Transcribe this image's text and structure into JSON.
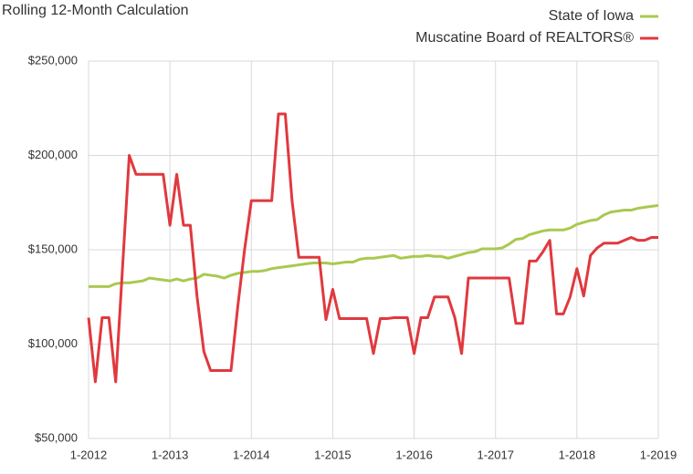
{
  "chart_data": {
    "type": "line",
    "title": "Rolling 12-Month Calculation",
    "categories": [
      "1-2012",
      null,
      null,
      null,
      null,
      null,
      null,
      null,
      null,
      null,
      null,
      null,
      "1-2013",
      null,
      null,
      null,
      null,
      null,
      null,
      null,
      null,
      null,
      null,
      null,
      "1-2014",
      null,
      null,
      null,
      null,
      null,
      null,
      null,
      null,
      null,
      null,
      null,
      "1-2015",
      null,
      null,
      null,
      null,
      null,
      null,
      null,
      null,
      null,
      null,
      null,
      "1-2016",
      null,
      null,
      null,
      null,
      null,
      null,
      null,
      null,
      null,
      null,
      null,
      "1-2017",
      null,
      null,
      null,
      null,
      null,
      null,
      null,
      null,
      null,
      null,
      null,
      "1-2018",
      null,
      null,
      null,
      null,
      null,
      null,
      null,
      null,
      null,
      null,
      null,
      "1-2019"
    ],
    "series": [
      {
        "name": "State of Iowa",
        "color": "#a9c94f",
        "values": [
          130500,
          130500,
          130500,
          130500,
          132000,
          132500,
          132500,
          133000,
          133500,
          135000,
          134500,
          134000,
          133500,
          134500,
          133500,
          134500,
          135000,
          137000,
          136500,
          136000,
          135000,
          136500,
          137500,
          138000,
          138500,
          138500,
          139000,
          140000,
          140500,
          141000,
          141500,
          142000,
          142500,
          143000,
          143000,
          143000,
          142500,
          143000,
          143500,
          143500,
          145000,
          145500,
          145500,
          146000,
          146500,
          147000,
          145500,
          146000,
          146500,
          146500,
          147000,
          146500,
          146500,
          145500,
          146500,
          147500,
          148500,
          149000,
          150500,
          150500,
          150500,
          151000,
          153000,
          155500,
          156000,
          158000,
          159000,
          160000,
          160500,
          160500,
          160500,
          161500,
          163500,
          164500,
          165500,
          166000,
          168500,
          170000,
          170500,
          171000,
          171000,
          172000,
          172500,
          173000,
          173500
        ]
      },
      {
        "name": "Muscatine Board of REALTORS®",
        "color": "#e0393e",
        "values": [
          114000,
          80000,
          114000,
          114000,
          80000,
          140000,
          200000,
          190000,
          190000,
          190000,
          190000,
          190000,
          163000,
          190000,
          163000,
          163000,
          125000,
          96000,
          86000,
          86000,
          86000,
          86000,
          120000,
          150000,
          176000,
          176000,
          176000,
          176000,
          222000,
          222000,
          176000,
          146000,
          146000,
          146000,
          146000,
          113000,
          129000,
          113500,
          113500,
          113500,
          113500,
          113500,
          95000,
          113500,
          113500,
          114000,
          114000,
          114000,
          95000,
          114000,
          114000,
          125000,
          125000,
          125000,
          114000,
          95000,
          135000,
          135000,
          135000,
          135000,
          135000,
          135000,
          135000,
          111000,
          111000,
          144000,
          144000,
          149000,
          155000,
          116000,
          116000,
          125000,
          140000,
          125500,
          147000,
          151000,
          153500,
          153500,
          153500,
          155000,
          156500,
          155000,
          155000,
          156500,
          156500
        ]
      }
    ],
    "ylim": [
      50000,
      250000
    ],
    "yticks": [
      {
        "value": 50000,
        "label": "$50,000"
      },
      {
        "value": 100000,
        "label": "$100,000"
      },
      {
        "value": 150000,
        "label": "$150,000"
      },
      {
        "value": 200000,
        "label": "$200,000"
      },
      {
        "value": 250000,
        "label": "$250,000"
      }
    ],
    "grid": true,
    "legend": "top-right"
  }
}
